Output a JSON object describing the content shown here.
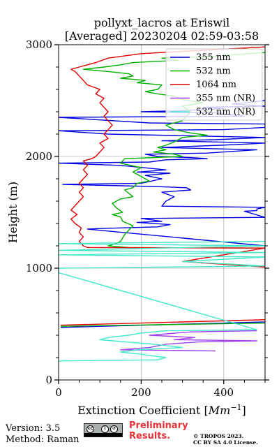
{
  "chart_data": {
    "type": "line",
    "title": "pollyxt_lacros at Eriswil",
    "subtitle": "[Averaged] 20230204 02:59-03:58",
    "xlabel": "Extinction Coefficient [Mm⁻¹]",
    "ylabel": "Height (m)",
    "xlim": [
      0,
      500
    ],
    "ylim": [
      0,
      3000
    ],
    "x_ticks": [
      0,
      200,
      400
    ],
    "y_ticks": [
      0,
      1000,
      2000,
      3000
    ],
    "grid": true,
    "legend_position": "top-right",
    "series": [
      {
        "name": "355 nm",
        "color": "#0000e0",
        "points": [
          [
            5,
            470
          ],
          [
            510,
            520
          ],
          [
            500,
            1010
          ],
          [
            500,
            1200
          ],
          [
            70,
            1350
          ],
          [
            100,
            1355
          ],
          [
            240,
            1370
          ],
          [
            270,
            1390
          ],
          [
            190,
            1410
          ],
          [
            250,
            1420
          ],
          [
            200,
            1445
          ],
          [
            500,
            1455
          ],
          [
            450,
            1510
          ],
          [
            480,
            1515
          ],
          [
            480,
            1530
          ],
          [
            500,
            1545
          ],
          [
            250,
            1555
          ],
          [
            260,
            1600
          ],
          [
            280,
            1640
          ],
          [
            250,
            1680
          ],
          [
            320,
            1700
          ],
          [
            310,
            1720
          ],
          [
            240,
            1730
          ],
          [
            10,
            1750
          ],
          [
            200,
            1760
          ],
          [
            250,
            1800
          ],
          [
            210,
            1830
          ],
          [
            270,
            1850
          ],
          [
            190,
            1860
          ],
          [
            260,
            1880
          ],
          [
            150,
            1920
          ],
          [
            0,
            1940
          ],
          [
            220,
            1950
          ],
          [
            260,
            1970
          ],
          [
            360,
            1980
          ],
          [
            320,
            1990
          ],
          [
            240,
            2000
          ],
          [
            210,
            2020
          ],
          [
            360,
            2030
          ],
          [
            480,
            2060
          ],
          [
            250,
            2080
          ],
          [
            390,
            2100
          ],
          [
            450,
            2110
          ],
          [
            500,
            2120
          ],
          [
            250,
            2140
          ],
          [
            380,
            2150
          ],
          [
            500,
            2170
          ],
          [
            120,
            2200
          ],
          [
            0,
            2230
          ],
          [
            400,
            2240
          ],
          [
            500,
            2260
          ],
          [
            500,
            2290
          ],
          [
            220,
            2300
          ],
          [
            0,
            2350
          ],
          [
            450,
            2360
          ],
          [
            380,
            2390
          ],
          [
            200,
            2400
          ],
          [
            300,
            2410
          ],
          [
            400,
            2430
          ],
          [
            350,
            2440
          ],
          [
            500,
            2450
          ],
          [
            420,
            2470
          ],
          [
            450,
            2480
          ],
          [
            500,
            2500
          ]
        ]
      },
      {
        "name": "532 nm",
        "color": "#00b000",
        "points": [
          [
            5,
            480
          ],
          [
            510,
            510
          ],
          [
            500,
            1000
          ],
          [
            520,
            1040
          ],
          [
            510,
            1180
          ],
          [
            170,
            1185
          ],
          [
            120,
            1200
          ],
          [
            140,
            1220
          ],
          [
            150,
            1240
          ],
          [
            160,
            1300
          ],
          [
            170,
            1340
          ],
          [
            180,
            1380
          ],
          [
            155,
            1420
          ],
          [
            150,
            1460
          ],
          [
            130,
            1480
          ],
          [
            155,
            1500
          ],
          [
            140,
            1540
          ],
          [
            130,
            1580
          ],
          [
            150,
            1620
          ],
          [
            180,
            1640
          ],
          [
            160,
            1700
          ],
          [
            180,
            1720
          ],
          [
            190,
            1760
          ],
          [
            220,
            1780
          ],
          [
            200,
            1820
          ],
          [
            180,
            1860
          ],
          [
            200,
            1900
          ],
          [
            150,
            1940
          ],
          [
            160,
            1980
          ],
          [
            300,
            2000
          ],
          [
            280,
            2020
          ],
          [
            230,
            2040
          ],
          [
            260,
            2060
          ],
          [
            240,
            2080
          ],
          [
            260,
            2100
          ],
          [
            280,
            2130
          ],
          [
            300,
            2170
          ],
          [
            360,
            2190
          ],
          [
            320,
            2210
          ],
          [
            280,
            2240
          ],
          [
            260,
            2280
          ],
          [
            300,
            2320
          ],
          [
            310,
            2360
          ],
          [
            320,
            2400
          ],
          [
            300,
            2450
          ],
          [
            350,
            2480
          ],
          [
            300,
            2510
          ],
          [
            280,
            2540
          ],
          [
            240,
            2560
          ],
          [
            210,
            2580
          ],
          [
            240,
            2600
          ],
          [
            250,
            2640
          ],
          [
            190,
            2660
          ],
          [
            210,
            2680
          ],
          [
            150,
            2700
          ],
          [
            180,
            2720
          ],
          [
            170,
            2740
          ],
          [
            120,
            2760
          ],
          [
            60,
            2780
          ],
          [
            110,
            2800
          ],
          [
            150,
            2820
          ],
          [
            180,
            2840
          ],
          [
            290,
            2860
          ],
          [
            250,
            2880
          ],
          [
            350,
            2890
          ],
          [
            500,
            2930
          ]
        ]
      },
      {
        "name": "1064 nm",
        "color": "#e00000",
        "points": [
          [
            5,
            490
          ],
          [
            510,
            540
          ],
          [
            500,
            1010
          ],
          [
            300,
            1060
          ],
          [
            500,
            1180
          ],
          [
            70,
            1185
          ],
          [
            60,
            1200
          ],
          [
            50,
            1240
          ],
          [
            60,
            1280
          ],
          [
            50,
            1320
          ],
          [
            55,
            1360
          ],
          [
            40,
            1400
          ],
          [
            30,
            1440
          ],
          [
            45,
            1480
          ],
          [
            30,
            1520
          ],
          [
            40,
            1560
          ],
          [
            50,
            1600
          ],
          [
            60,
            1640
          ],
          [
            50,
            1680
          ],
          [
            60,
            1720
          ],
          [
            50,
            1760
          ],
          [
            60,
            1800
          ],
          [
            70,
            1840
          ],
          [
            60,
            1880
          ],
          [
            70,
            1920
          ],
          [
            60,
            1960
          ],
          [
            80,
            1980
          ],
          [
            90,
            2000
          ],
          [
            100,
            2040
          ],
          [
            110,
            2080
          ],
          [
            100,
            2120
          ],
          [
            120,
            2160
          ],
          [
            110,
            2200
          ],
          [
            120,
            2240
          ],
          [
            130,
            2280
          ],
          [
            120,
            2320
          ],
          [
            110,
            2360
          ],
          [
            120,
            2400
          ],
          [
            110,
            2440
          ],
          [
            100,
            2480
          ],
          [
            110,
            2520
          ],
          [
            90,
            2560
          ],
          [
            100,
            2600
          ],
          [
            70,
            2640
          ],
          [
            60,
            2680
          ],
          [
            50,
            2720
          ],
          [
            40,
            2760
          ],
          [
            30,
            2780
          ],
          [
            50,
            2800
          ],
          [
            90,
            2840
          ],
          [
            120,
            2880
          ],
          [
            200,
            2920
          ],
          [
            350,
            2950
          ],
          [
            500,
            2980
          ]
        ]
      },
      {
        "name": "355 nm (NR)",
        "color": "#a040f0",
        "points": [
          [
            380,
            260
          ],
          [
            150,
            270
          ],
          [
            220,
            290
          ],
          [
            260,
            320
          ],
          [
            340,
            340
          ],
          [
            480,
            350
          ],
          [
            280,
            360
          ],
          [
            330,
            380
          ],
          [
            220,
            400
          ],
          [
            320,
            430
          ],
          [
            480,
            440
          ]
        ]
      },
      {
        "name": "532 nm (NR)",
        "color": "#40e8c8",
        "points": [
          [
            0,
            170
          ],
          [
            240,
            180
          ],
          [
            260,
            200
          ],
          [
            200,
            230
          ],
          [
            150,
            250
          ],
          [
            190,
            270
          ],
          [
            300,
            290
          ],
          [
            230,
            320
          ],
          [
            100,
            360
          ],
          [
            120,
            380
          ],
          [
            170,
            400
          ],
          [
            200,
            420
          ],
          [
            260,
            440
          ],
          [
            480,
            450
          ],
          [
            0,
            960
          ],
          [
            0,
            1000
          ],
          [
            500,
            1020
          ],
          [
            300,
            1060
          ],
          [
            500,
            1100
          ],
          [
            0,
            1120
          ],
          [
            500,
            1140
          ],
          [
            0,
            1160
          ],
          [
            500,
            1200
          ],
          [
            0,
            1220
          ],
          [
            500,
            1240
          ]
        ]
      }
    ]
  },
  "footer": {
    "version": "Version: 3.5",
    "method": "Method: Raman",
    "prelim_line1": "Preliminary",
    "prelim_line2": "Results.",
    "copyright_line1": "© TROPOS 2023.",
    "copyright_line2": "CC BY SA 4.0 License."
  },
  "cc_badge": {
    "icon": "creative-commons-by-sa-badge",
    "labels": [
      "cc",
      "BY",
      "SA"
    ]
  }
}
